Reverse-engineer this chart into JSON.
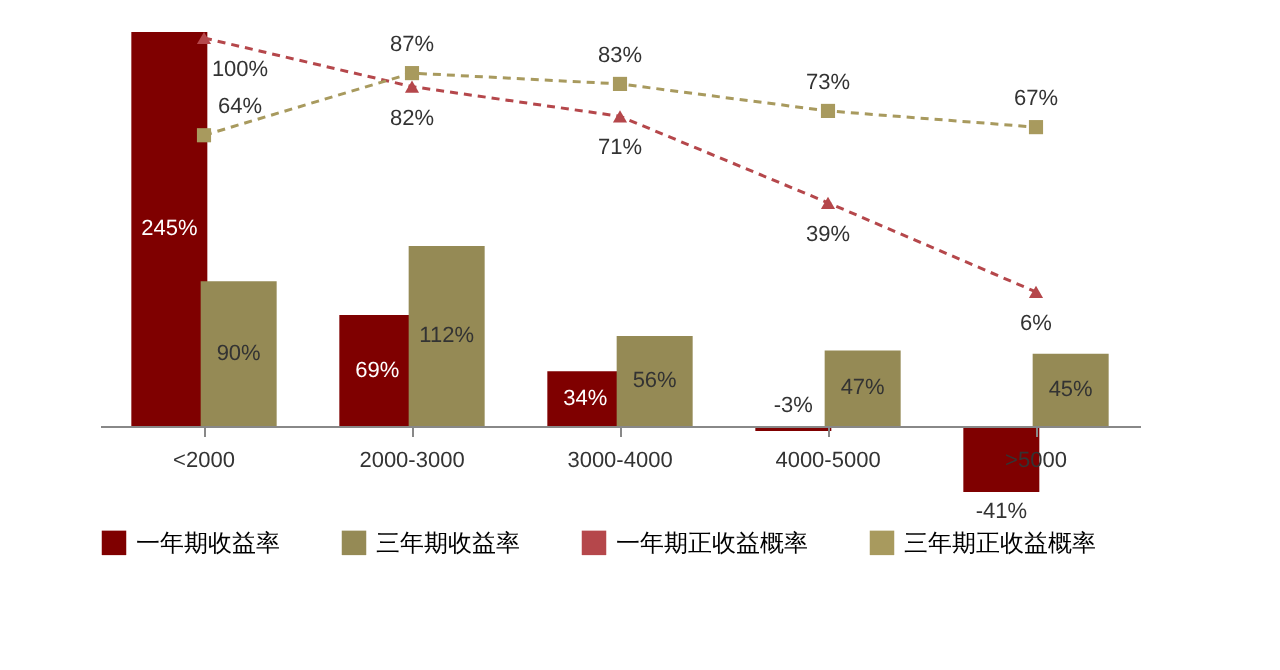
{
  "chart_data": {
    "type": "bar",
    "categories": [
      "<2000",
      "2000-3000",
      "3000-4000",
      "4000-5000",
      ">5000"
    ],
    "tick_labels": "x",
    "legend": "bottom",
    "grid": false,
    "series": [
      {
        "name": "一年期收益率",
        "color": "#7f0000",
        "values": [
          245,
          69,
          34,
          -3,
          -41
        ],
        "value_labels": [
          "245%",
          "69%",
          "34%",
          "-3%",
          "-41%"
        ]
      },
      {
        "name": "三年期收益率",
        "color": "#958a55",
        "values": [
          90,
          112,
          56,
          47,
          45
        ],
        "value_labels": [
          "90%",
          "112%",
          "56%",
          "47%",
          "45%"
        ]
      },
      {
        "name": "一年期正收益概率",
        "type": "line",
        "axis": "y2",
        "color": "#b5474b",
        "marker": "triangle",
        "line_style": "dashed",
        "values": [
          100,
          82,
          71,
          39,
          6
        ],
        "value_labels": [
          "100%",
          "82%",
          "71%",
          "39%",
          "6%"
        ]
      },
      {
        "name": "三年期正收益概率",
        "type": "line",
        "axis": "y2",
        "color": "#a89a5e",
        "marker": "square",
        "line_style": "dashed",
        "values": [
          64,
          87,
          83,
          73,
          67
        ],
        "value_labels": [
          "64%",
          "87%",
          "83%",
          "73%",
          "67%"
        ]
      }
    ]
  }
}
